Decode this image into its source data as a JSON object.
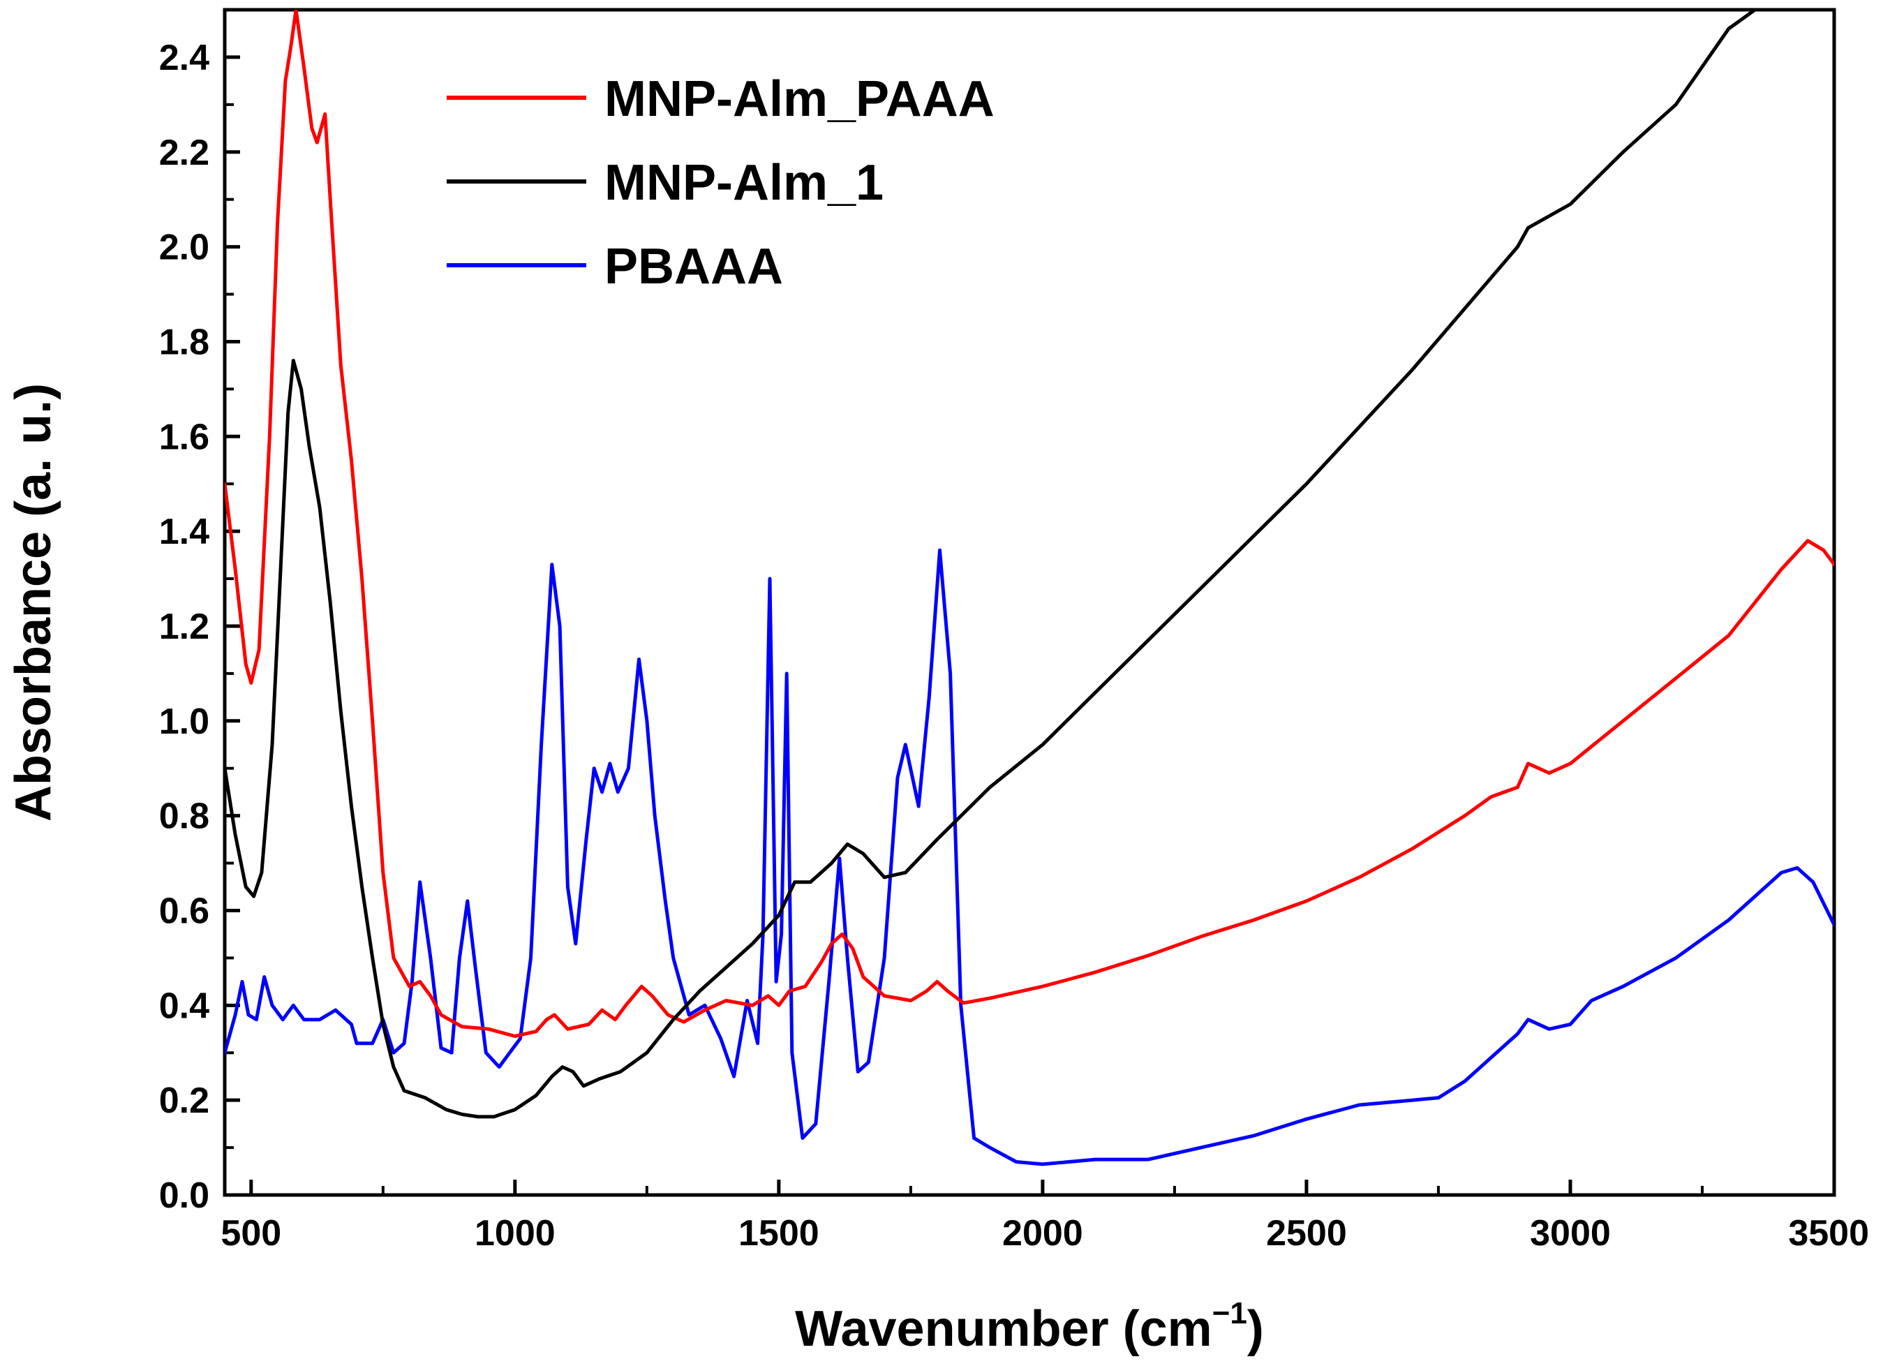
{
  "chart_data": {
    "type": "line",
    "title": "",
    "xlabel": "Wavenumber (cm",
    "xlabel_sup": "−1",
    "xlabel_close": ")",
    "ylabel": "Absorbance (a. u.)",
    "xlim": [
      450,
      3500
    ],
    "ylim": [
      0.0,
      2.5
    ],
    "xticks": [
      500,
      1000,
      1500,
      2000,
      2500,
      3000,
      3500
    ],
    "yticks": [
      0.0,
      0.2,
      0.4,
      0.6,
      0.8,
      1.0,
      1.2,
      1.4,
      1.6,
      1.8,
      2.0,
      2.2,
      2.4
    ],
    "xtick_labels": [
      "500",
      "1000",
      "1500",
      "2000",
      "2500",
      "3000",
      "3500"
    ],
    "ytick_labels": [
      "0.0",
      "0.2",
      "0.4",
      "0.6",
      "0.8",
      "1.0",
      "1.2",
      "1.4",
      "1.6",
      "1.8",
      "2.0",
      "2.2",
      "2.4"
    ],
    "legend_position": "top-left",
    "series": [
      {
        "name": "MNP-Alm_PAAA",
        "color": "#ff0000",
        "points": [
          [
            450,
            1.5
          ],
          [
            470,
            1.32
          ],
          [
            490,
            1.12
          ],
          [
            500,
            1.08
          ],
          [
            515,
            1.15
          ],
          [
            535,
            1.6
          ],
          [
            550,
            2.05
          ],
          [
            565,
            2.35
          ],
          [
            575,
            2.42
          ],
          [
            585,
            2.5
          ],
          [
            600,
            2.38
          ],
          [
            615,
            2.25
          ],
          [
            625,
            2.22
          ],
          [
            640,
            2.28
          ],
          [
            650,
            2.1
          ],
          [
            670,
            1.75
          ],
          [
            690,
            1.55
          ],
          [
            710,
            1.3
          ],
          [
            730,
            1.0
          ],
          [
            750,
            0.68
          ],
          [
            770,
            0.5
          ],
          [
            800,
            0.44
          ],
          [
            820,
            0.45
          ],
          [
            840,
            0.42
          ],
          [
            860,
            0.38
          ],
          [
            900,
            0.355
          ],
          [
            950,
            0.35
          ],
          [
            1000,
            0.335
          ],
          [
            1040,
            0.345
          ],
          [
            1060,
            0.37
          ],
          [
            1075,
            0.38
          ],
          [
            1100,
            0.35
          ],
          [
            1140,
            0.36
          ],
          [
            1165,
            0.39
          ],
          [
            1190,
            0.37
          ],
          [
            1210,
            0.4
          ],
          [
            1240,
            0.44
          ],
          [
            1260,
            0.42
          ],
          [
            1290,
            0.38
          ],
          [
            1320,
            0.365
          ],
          [
            1360,
            0.39
          ],
          [
            1400,
            0.41
          ],
          [
            1450,
            0.4
          ],
          [
            1480,
            0.42
          ],
          [
            1500,
            0.4
          ],
          [
            1520,
            0.43
          ],
          [
            1550,
            0.44
          ],
          [
            1580,
            0.49
          ],
          [
            1600,
            0.53
          ],
          [
            1620,
            0.55
          ],
          [
            1640,
            0.52
          ],
          [
            1660,
            0.46
          ],
          [
            1700,
            0.42
          ],
          [
            1750,
            0.41
          ],
          [
            1780,
            0.43
          ],
          [
            1800,
            0.45
          ],
          [
            1820,
            0.43
          ],
          [
            1850,
            0.405
          ],
          [
            1900,
            0.415
          ],
          [
            2000,
            0.44
          ],
          [
            2100,
            0.47
          ],
          [
            2200,
            0.505
          ],
          [
            2300,
            0.545
          ],
          [
            2400,
            0.58
          ],
          [
            2500,
            0.62
          ],
          [
            2600,
            0.67
          ],
          [
            2700,
            0.73
          ],
          [
            2800,
            0.8
          ],
          [
            2850,
            0.84
          ],
          [
            2900,
            0.86
          ],
          [
            2920,
            0.91
          ],
          [
            2940,
            0.9
          ],
          [
            2960,
            0.89
          ],
          [
            3000,
            0.91
          ],
          [
            3100,
            1.0
          ],
          [
            3200,
            1.09
          ],
          [
            3300,
            1.18
          ],
          [
            3350,
            1.25
          ],
          [
            3400,
            1.32
          ],
          [
            3450,
            1.38
          ],
          [
            3480,
            1.36
          ],
          [
            3500,
            1.33
          ]
        ]
      },
      {
        "name": "MNP-Alm_1",
        "color": "#000000",
        "points": [
          [
            450,
            0.9
          ],
          [
            470,
            0.76
          ],
          [
            490,
            0.65
          ],
          [
            505,
            0.63
          ],
          [
            520,
            0.68
          ],
          [
            540,
            0.95
          ],
          [
            555,
            1.3
          ],
          [
            570,
            1.65
          ],
          [
            580,
            1.76
          ],
          [
            595,
            1.7
          ],
          [
            610,
            1.58
          ],
          [
            630,
            1.45
          ],
          [
            650,
            1.25
          ],
          [
            670,
            1.02
          ],
          [
            690,
            0.82
          ],
          [
            710,
            0.65
          ],
          [
            730,
            0.5
          ],
          [
            750,
            0.36
          ],
          [
            770,
            0.27
          ],
          [
            790,
            0.22
          ],
          [
            830,
            0.205
          ],
          [
            870,
            0.18
          ],
          [
            900,
            0.17
          ],
          [
            930,
            0.165
          ],
          [
            960,
            0.165
          ],
          [
            1000,
            0.18
          ],
          [
            1040,
            0.21
          ],
          [
            1070,
            0.25
          ],
          [
            1090,
            0.27
          ],
          [
            1110,
            0.26
          ],
          [
            1130,
            0.23
          ],
          [
            1160,
            0.245
          ],
          [
            1200,
            0.26
          ],
          [
            1250,
            0.3
          ],
          [
            1300,
            0.37
          ],
          [
            1350,
            0.43
          ],
          [
            1400,
            0.48
          ],
          [
            1450,
            0.53
          ],
          [
            1500,
            0.59
          ],
          [
            1530,
            0.66
          ],
          [
            1560,
            0.66
          ],
          [
            1600,
            0.7
          ],
          [
            1630,
            0.74
          ],
          [
            1660,
            0.72
          ],
          [
            1700,
            0.67
          ],
          [
            1740,
            0.68
          ],
          [
            1800,
            0.75
          ],
          [
            1900,
            0.86
          ],
          [
            2000,
            0.95
          ],
          [
            2100,
            1.06
          ],
          [
            2200,
            1.17
          ],
          [
            2300,
            1.28
          ],
          [
            2400,
            1.39
          ],
          [
            2500,
            1.5
          ],
          [
            2600,
            1.62
          ],
          [
            2700,
            1.74
          ],
          [
            2800,
            1.87
          ],
          [
            2900,
            2.0
          ],
          [
            2920,
            2.04
          ],
          [
            3000,
            2.09
          ],
          [
            3100,
            2.2
          ],
          [
            3200,
            2.3
          ],
          [
            3300,
            2.46
          ],
          [
            3350,
            2.5
          ]
        ]
      },
      {
        "name": "PBAAA",
        "color": "#0000ff",
        "points": [
          [
            450,
            0.3
          ],
          [
            470,
            0.38
          ],
          [
            483,
            0.45
          ],
          [
            495,
            0.38
          ],
          [
            510,
            0.37
          ],
          [
            525,
            0.46
          ],
          [
            540,
            0.4
          ],
          [
            560,
            0.37
          ],
          [
            580,
            0.4
          ],
          [
            600,
            0.37
          ],
          [
            630,
            0.37
          ],
          [
            660,
            0.39
          ],
          [
            690,
            0.36
          ],
          [
            700,
            0.32
          ],
          [
            730,
            0.32
          ],
          [
            750,
            0.37
          ],
          [
            770,
            0.3
          ],
          [
            790,
            0.32
          ],
          [
            805,
            0.45
          ],
          [
            820,
            0.66
          ],
          [
            840,
            0.5
          ],
          [
            860,
            0.31
          ],
          [
            880,
            0.3
          ],
          [
            895,
            0.5
          ],
          [
            910,
            0.62
          ],
          [
            925,
            0.48
          ],
          [
            945,
            0.3
          ],
          [
            970,
            0.27
          ],
          [
            990,
            0.3
          ],
          [
            1010,
            0.33
          ],
          [
            1030,
            0.5
          ],
          [
            1050,
            0.95
          ],
          [
            1070,
            1.33
          ],
          [
            1085,
            1.2
          ],
          [
            1100,
            0.65
          ],
          [
            1115,
            0.53
          ],
          [
            1135,
            0.75
          ],
          [
            1150,
            0.9
          ],
          [
            1165,
            0.85
          ],
          [
            1180,
            0.91
          ],
          [
            1195,
            0.85
          ],
          [
            1215,
            0.9
          ],
          [
            1235,
            1.13
          ],
          [
            1250,
            1.0
          ],
          [
            1265,
            0.8
          ],
          [
            1285,
            0.62
          ],
          [
            1300,
            0.5
          ],
          [
            1330,
            0.38
          ],
          [
            1360,
            0.4
          ],
          [
            1390,
            0.33
          ],
          [
            1415,
            0.25
          ],
          [
            1440,
            0.41
          ],
          [
            1460,
            0.32
          ],
          [
            1470,
            0.55
          ],
          [
            1483,
            1.3
          ],
          [
            1495,
            0.45
          ],
          [
            1505,
            0.55
          ],
          [
            1515,
            1.1
          ],
          [
            1525,
            0.3
          ],
          [
            1545,
            0.12
          ],
          [
            1570,
            0.15
          ],
          [
            1595,
            0.45
          ],
          [
            1615,
            0.71
          ],
          [
            1630,
            0.5
          ],
          [
            1650,
            0.26
          ],
          [
            1670,
            0.28
          ],
          [
            1700,
            0.5
          ],
          [
            1725,
            0.88
          ],
          [
            1740,
            0.95
          ],
          [
            1765,
            0.82
          ],
          [
            1785,
            1.05
          ],
          [
            1805,
            1.36
          ],
          [
            1825,
            1.1
          ],
          [
            1845,
            0.4
          ],
          [
            1870,
            0.12
          ],
          [
            1900,
            0.1
          ],
          [
            1950,
            0.07
          ],
          [
            2000,
            0.065
          ],
          [
            2100,
            0.075
          ],
          [
            2200,
            0.075
          ],
          [
            2300,
            0.1
          ],
          [
            2400,
            0.125
          ],
          [
            2500,
            0.16
          ],
          [
            2600,
            0.19
          ],
          [
            2700,
            0.2
          ],
          [
            2750,
            0.205
          ],
          [
            2800,
            0.24
          ],
          [
            2850,
            0.29
          ],
          [
            2900,
            0.34
          ],
          [
            2920,
            0.37
          ],
          [
            2960,
            0.35
          ],
          [
            3000,
            0.36
          ],
          [
            3040,
            0.41
          ],
          [
            3100,
            0.44
          ],
          [
            3200,
            0.5
          ],
          [
            3300,
            0.58
          ],
          [
            3350,
            0.63
          ],
          [
            3400,
            0.68
          ],
          [
            3430,
            0.69
          ],
          [
            3460,
            0.66
          ],
          [
            3500,
            0.57
          ]
        ]
      }
    ]
  }
}
